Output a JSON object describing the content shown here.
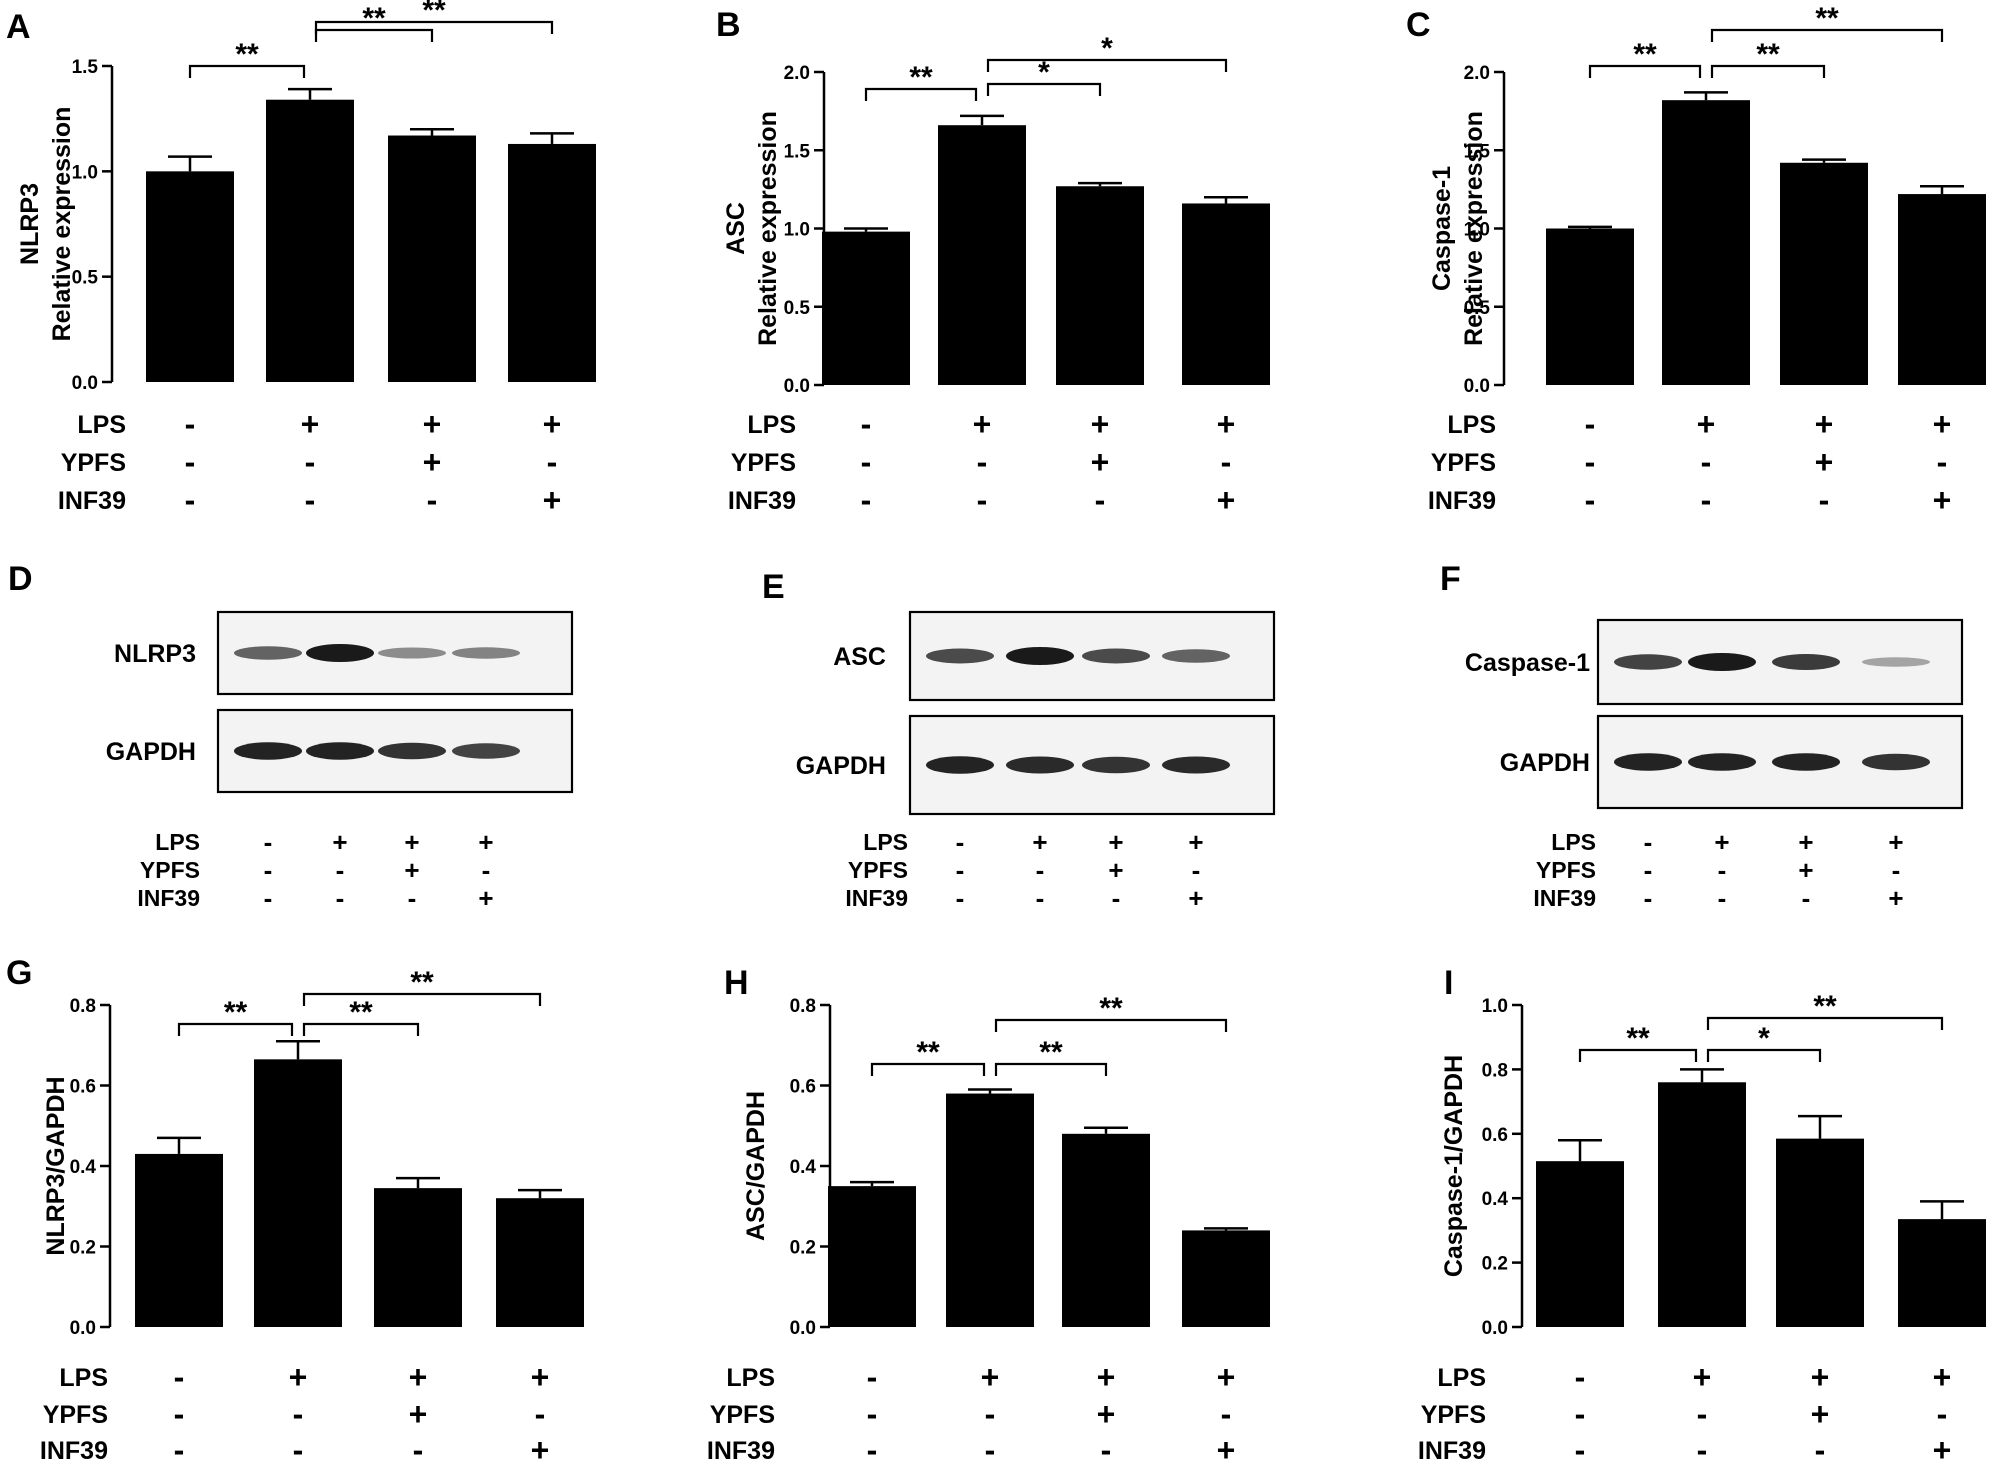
{
  "panel_letters": {
    "A": "A",
    "B": "B",
    "C": "C",
    "D": "D",
    "E": "E",
    "F": "F",
    "G": "G",
    "H": "H",
    "I": "I"
  },
  "conditions": {
    "rows": [
      "LPS",
      "YPFS",
      "INF39"
    ],
    "values": [
      [
        "-",
        "+",
        "+",
        "+"
      ],
      [
        "-",
        "-",
        "+",
        "-"
      ],
      [
        "-",
        "-",
        "-",
        "+"
      ]
    ]
  },
  "chart_data": [
    {
      "type": "bar",
      "panel": "A",
      "ylabel_lines": [
        "NLRP3",
        "Relative expression"
      ],
      "ylim": [
        0,
        1.5
      ],
      "yticks": [
        "0.0",
        "0.5",
        "1.0",
        "1.5"
      ],
      "values": [
        1.0,
        1.34,
        1.17,
        1.13
      ],
      "errors": [
        0.07,
        0.05,
        0.03,
        0.05
      ],
      "sig": [
        {
          "from": 0,
          "to": 1,
          "label": "**"
        },
        {
          "from": 1,
          "to": 2,
          "label": "**"
        },
        {
          "from": 1,
          "to": 3,
          "label": "**"
        }
      ]
    },
    {
      "type": "bar",
      "panel": "B",
      "ylabel_lines": [
        "ASC",
        "Relative expression"
      ],
      "ylim": [
        0,
        2.0
      ],
      "yticks": [
        "0.0",
        "0.5",
        "1.0",
        "1.5",
        "2.0"
      ],
      "values": [
        0.98,
        1.66,
        1.27,
        1.16
      ],
      "errors": [
        0.02,
        0.06,
        0.02,
        0.04
      ],
      "sig": [
        {
          "from": 0,
          "to": 1,
          "label": "**"
        },
        {
          "from": 1,
          "to": 2,
          "label": "*"
        },
        {
          "from": 1,
          "to": 3,
          "label": "*"
        }
      ]
    },
    {
      "type": "bar",
      "panel": "C",
      "ylabel_lines": [
        "Caspase-1",
        "Relative expression"
      ],
      "ylim": [
        0,
        2.0
      ],
      "yticks": [
        "0.0",
        "0.5",
        "1.0",
        "1.5",
        "2.0"
      ],
      "values": [
        1.0,
        1.82,
        1.42,
        1.22
      ],
      "errors": [
        0.01,
        0.05,
        0.02,
        0.05
      ],
      "sig": [
        {
          "from": 0,
          "to": 1,
          "label": "**"
        },
        {
          "from": 1,
          "to": 2,
          "label": "**"
        },
        {
          "from": 1,
          "to": 3,
          "label": "**"
        }
      ]
    },
    {
      "type": "bar",
      "panel": "G",
      "ylabel_lines": [
        "NLRP3/GAPDH"
      ],
      "ylim": [
        0,
        0.8
      ],
      "yticks": [
        "0.0",
        "0.2",
        "0.4",
        "0.6",
        "0.8"
      ],
      "values": [
        0.43,
        0.665,
        0.345,
        0.32
      ],
      "errors": [
        0.04,
        0.045,
        0.025,
        0.02
      ],
      "sig": [
        {
          "from": 0,
          "to": 1,
          "label": "**"
        },
        {
          "from": 1,
          "to": 2,
          "label": "**"
        },
        {
          "from": 1,
          "to": 3,
          "label": "**"
        }
      ]
    },
    {
      "type": "bar",
      "panel": "H",
      "ylabel_lines": [
        "ASC/GAPDH"
      ],
      "ylim": [
        0,
        0.8
      ],
      "yticks": [
        "0.0",
        "0.2",
        "0.4",
        "0.6",
        "0.8"
      ],
      "values": [
        0.35,
        0.58,
        0.48,
        0.24
      ],
      "errors": [
        0.01,
        0.01,
        0.015,
        0.005
      ],
      "sig": [
        {
          "from": 0,
          "to": 1,
          "label": "**"
        },
        {
          "from": 1,
          "to": 2,
          "label": "**"
        },
        {
          "from": 1,
          "to": 3,
          "label": "**"
        }
      ]
    },
    {
      "type": "bar",
      "panel": "I",
      "ylabel_lines": [
        "Caspase-1/GAPDH"
      ],
      "ylim": [
        0,
        1.0
      ],
      "yticks": [
        "0.0",
        "0.2",
        "0.4",
        "0.6",
        "0.8",
        "1.0"
      ],
      "values": [
        0.515,
        0.76,
        0.585,
        0.335
      ],
      "errors": [
        0.065,
        0.04,
        0.07,
        0.055
      ],
      "sig": [
        {
          "from": 0,
          "to": 1,
          "label": "**"
        },
        {
          "from": 1,
          "to": 2,
          "label": "*"
        },
        {
          "from": 1,
          "to": 3,
          "label": "**"
        }
      ]
    }
  ],
  "blots": [
    {
      "panel": "D",
      "target": "NLRP3",
      "target_intensity": [
        0.55,
        1.0,
        0.3,
        0.35
      ],
      "loading": "GAPDH",
      "loading_intensity": [
        0.95,
        0.95,
        0.85,
        0.75
      ]
    },
    {
      "panel": "E",
      "target": "ASC",
      "target_intensity": [
        0.7,
        1.0,
        0.7,
        0.55
      ],
      "loading": "GAPDH",
      "loading_intensity": [
        0.95,
        0.9,
        0.85,
        0.9
      ]
    },
    {
      "panel": "F",
      "target": "Caspase-1",
      "target_intensity": [
        0.75,
        1.0,
        0.8,
        0.15
      ],
      "loading": "GAPDH",
      "loading_intensity": [
        0.95,
        0.95,
        0.95,
        0.85
      ]
    }
  ],
  "style": {
    "bar_color": "#000000",
    "band_color": "#1a1a1a",
    "blot_background": "#f3f3f3"
  }
}
